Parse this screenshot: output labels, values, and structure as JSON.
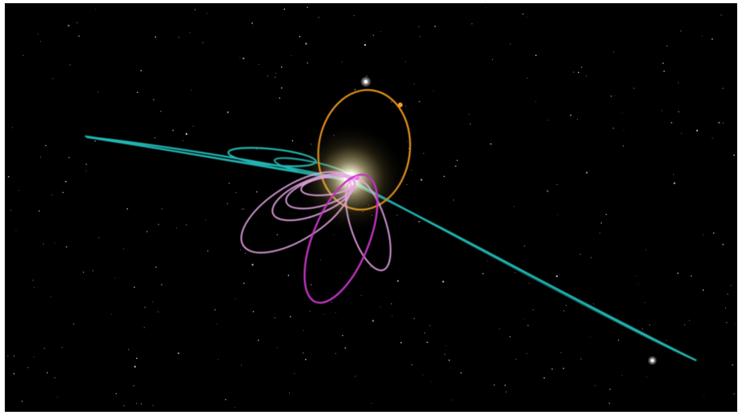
{
  "scene": {
    "background_color": "#000000",
    "frame_color": "#ffffff",
    "colors": {
      "sun_glow": "#fff4c8",
      "sun_core": "#ffffff",
      "cyan_orbits": "#21b7b4",
      "orange_orbit": "#e8951e",
      "magenta_orbit": "#c034c0",
      "pink_orbits": "#e7a6e7",
      "star": "#ffffff"
    },
    "icons": {
      "sun": "sun-icon",
      "star": "star-icon"
    }
  }
}
